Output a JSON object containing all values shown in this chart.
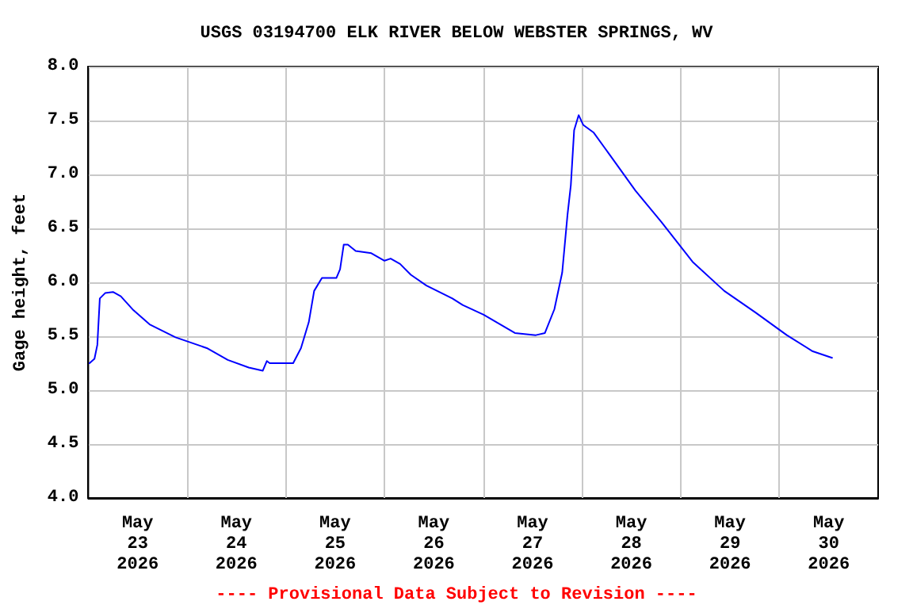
{
  "chart_data": {
    "type": "line",
    "title": "USGS 03194700 ELK RIVER BELOW WEBSTER SPRINGS, WV",
    "ylabel": "Gage height, feet",
    "annotations": [
      "---- Provisional Data Subject to Revision ----"
    ],
    "x": [
      "2026-05-23T00:18",
      "2026-05-23T01:30",
      "2026-05-23T02:12",
      "2026-05-23T02:48",
      "2026-05-23T04:06",
      "2026-05-23T06:00",
      "2026-05-23T07:54",
      "2026-05-23T11:00",
      "2026-05-23T14:54",
      "2026-05-23T21:12",
      "2026-05-24T04:48",
      "2026-05-24T09:54",
      "2026-05-24T15:00",
      "2026-05-24T18:24",
      "2026-05-24T19:24",
      "2026-05-24T20:06",
      "2026-05-25T01:48",
      "2026-05-25T03:42",
      "2026-05-25T05:36",
      "2026-05-25T06:54",
      "2026-05-25T08:48",
      "2026-05-25T12:18",
      "2026-05-25T13:12",
      "2026-05-25T14:06",
      "2026-05-25T15:06",
      "2026-05-25T17:00",
      "2026-05-25T20:48",
      "2026-05-26T00:00",
      "2026-05-26T01:30",
      "2026-05-26T03:48",
      "2026-05-26T06:24",
      "2026-05-26T10:12",
      "2026-05-26T16:30",
      "2026-05-26T19:00",
      "2026-05-27T00:06",
      "2026-05-27T07:42",
      "2026-05-27T12:48",
      "2026-05-27T15:00",
      "2026-05-27T17:18",
      "2026-05-27T19:12",
      "2026-05-27T20:30",
      "2026-05-27T21:18",
      "2026-05-27T22:06",
      "2026-05-27T23:12",
      "2026-05-28T00:18",
      "2026-05-28T02:48",
      "2026-05-28T06:36",
      "2026-05-28T13:00",
      "2026-05-28T19:18",
      "2026-05-29T02:54",
      "2026-05-29T10:36",
      "2026-05-29T18:12",
      "2026-05-30T01:48",
      "2026-05-30T08:06",
      "2026-05-30T12:48"
    ],
    "series": [
      {
        "color": "#0000ff",
        "values": [
          5.25,
          5.29,
          5.42,
          5.85,
          5.9,
          5.91,
          5.87,
          5.74,
          5.61,
          5.49,
          5.39,
          5.28,
          5.21,
          5.18,
          5.27,
          5.25,
          5.25,
          5.39,
          5.63,
          5.92,
          6.04,
          6.04,
          6.12,
          6.35,
          6.35,
          6.29,
          6.27,
          6.2,
          6.22,
          6.17,
          6.07,
          5.97,
          5.85,
          5.79,
          5.7,
          5.53,
          5.51,
          5.53,
          5.75,
          6.09,
          6.63,
          6.9,
          7.41,
          7.55,
          7.46,
          7.39,
          7.19,
          6.85,
          6.56,
          6.19,
          5.92,
          5.72,
          5.51,
          5.36,
          5.3
        ]
      }
    ],
    "xlim": [
      "2026-05-23",
      "2026-05-31"
    ],
    "xticks": [
      {
        "value": "2026-05-23T12:00",
        "label": "May\n23\n2026"
      },
      {
        "value": "2026-05-24",
        "label": null
      },
      {
        "value": "2026-05-24T12:00",
        "label": "May\n24\n2026"
      },
      {
        "value": "2026-05-25",
        "label": null
      },
      {
        "value": "2026-05-25T12:00",
        "label": "May\n25\n2026"
      },
      {
        "value": "2026-05-26",
        "label": null
      },
      {
        "value": "2026-05-26T12:00",
        "label": "May\n26\n2026"
      },
      {
        "value": "2026-05-27",
        "label": null
      },
      {
        "value": "2026-05-27T12:00",
        "label": "May\n27\n2026"
      },
      {
        "value": "2026-05-28",
        "label": null
      },
      {
        "value": "2026-05-28T12:00",
        "label": "May\n28\n2026"
      },
      {
        "value": "2026-05-29",
        "label": null
      },
      {
        "value": "2026-05-29T12:00",
        "label": "May\n29\n2026"
      },
      {
        "value": "2026-05-30",
        "label": null
      },
      {
        "value": "2026-05-30T12:00",
        "label": "May\n30\n2026"
      }
    ],
    "ylim": [
      4,
      8
    ],
    "yticks": [
      {
        "value": 4,
        "label": "4.0"
      },
      {
        "value": 4.5,
        "label": "4.5"
      },
      {
        "value": 5,
        "label": "5.0"
      },
      {
        "value": 5.5,
        "label": "5.5"
      },
      {
        "value": 6,
        "label": "6.0"
      },
      {
        "value": 6.5,
        "label": "6.5"
      },
      {
        "value": 7,
        "label": "7.0"
      },
      {
        "value": 7.5,
        "label": "7.5"
      },
      {
        "value": 8,
        "label": "8.0"
      }
    ],
    "grid": true,
    "marker": "none",
    "line_style": "solid"
  }
}
